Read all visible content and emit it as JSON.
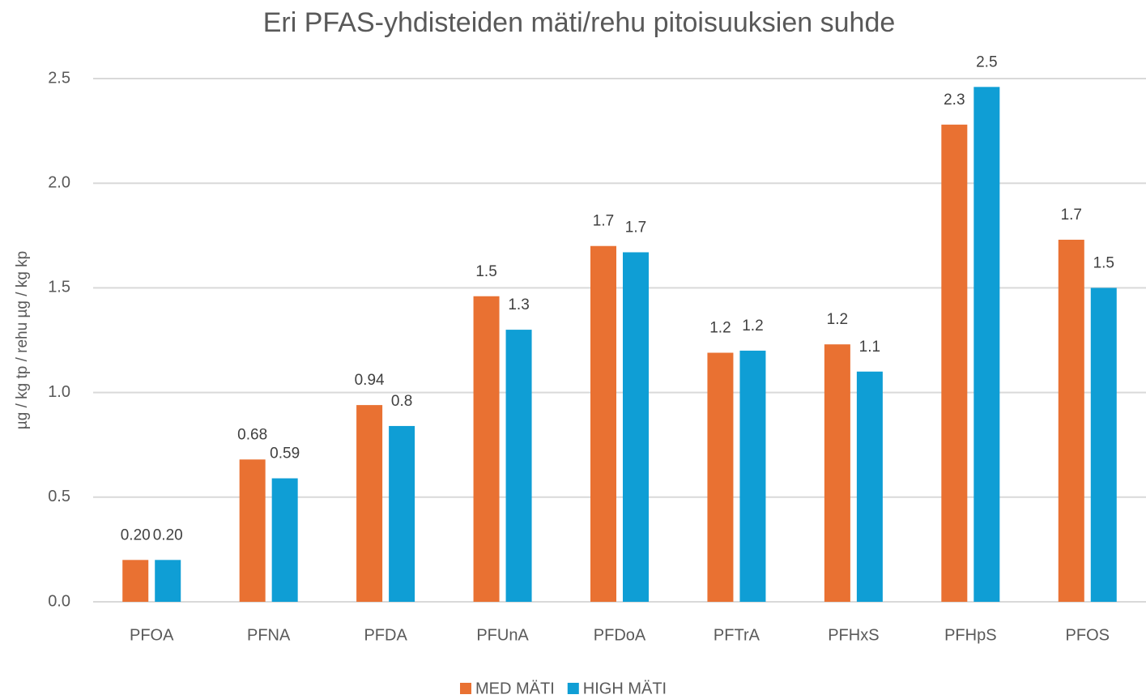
{
  "chart_data": {
    "type": "bar",
    "title": "Eri PFAS-yhdisteiden mäti/rehu pitoisuuksien suhde",
    "y_label": "µg / kg tp / rehu µg / kg kp",
    "categories": [
      "PFOA",
      "PFNA",
      "PFDA",
      "PFUnA",
      "PFDoA",
      "PFTrA",
      "PFHxS",
      "PFHpS",
      "PFOS"
    ],
    "series": [
      {
        "name": "MED MÄTI",
        "color": "#e97132",
        "values": [
          0.2,
          0.68,
          0.94,
          1.46,
          1.7,
          1.19,
          1.23,
          2.28,
          1.73
        ],
        "value_labels": [
          "0.20",
          "0.68",
          "0.94",
          "1.5",
          "1.7",
          "1.2",
          "1.2",
          "2.3",
          "1.7"
        ]
      },
      {
        "name": "HIGH MÄTI",
        "color": "#0f9ed5",
        "values": [
          0.2,
          0.59,
          0.84,
          1.3,
          1.67,
          1.2,
          1.1,
          2.46,
          1.5
        ],
        "value_labels": [
          "0.20",
          "0.59",
          "0.8",
          "1.3",
          "1.7",
          "1.2",
          "1.1",
          "2.5",
          "1.5"
        ]
      }
    ],
    "ylim": [
      0,
      2.5
    ],
    "yticks": [
      {
        "value": 0,
        "label": "0.0"
      },
      0.5,
      {
        "value": 1,
        "label": "1.0"
      },
      1.5,
      {
        "value": 2,
        "label": "2.0"
      },
      2.5
    ],
    "grid": true,
    "legend": "bottom"
  }
}
